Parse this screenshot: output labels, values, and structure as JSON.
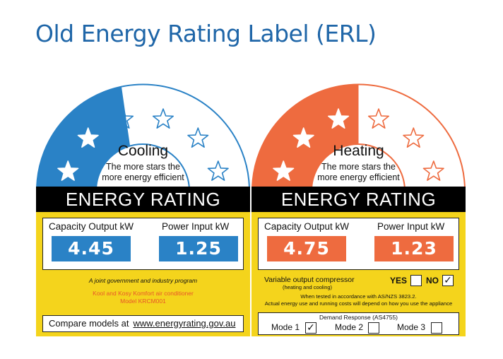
{
  "page": {
    "title": "Old Energy Rating Label (ERL)"
  },
  "cooling": {
    "heading": "Cooling",
    "subtitle_line1": "The more stars the",
    "subtitle_line2": "more energy efficient",
    "rating_banner": "ENERGY RATING",
    "capacity_label": "Capacity Output kW",
    "power_label": "Power Input kW",
    "capacity_value": "4.45",
    "power_value": "1.25",
    "program_text": "A joint government and industry program",
    "product_line": "Kool and Kosy Komfort air conditioner",
    "model_line": "Model KRCM001",
    "compare_text": "Compare models at",
    "compare_url": "www.energyrating.gov.au",
    "stars_filled": 2,
    "stars_total": 6,
    "accent_color": "#2a82c6"
  },
  "heating": {
    "heading": "Heating",
    "subtitle_line1": "The more stars the",
    "subtitle_line2": "more energy efficient",
    "rating_banner": "ENERGY RATING",
    "capacity_label": "Capacity Output kW",
    "power_label": "Power Input kW",
    "capacity_value": "4.75",
    "power_value": "1.23",
    "compressor_text": "Variable output compressor",
    "compressor_sub": "(heating and cooling)",
    "yes_label": "YES",
    "no_label": "NO",
    "compressor_checked": "NO",
    "tested_line": "When tested in accordance with AS/NZS 3823.2.",
    "actual_line": "Actual energy use and running costs will depend on how you use the appliance",
    "demand_title": "Demand Response (AS4755)",
    "modes": [
      {
        "label": "Mode 1",
        "checked": true
      },
      {
        "label": "Mode 2",
        "checked": false
      },
      {
        "label": "Mode 3",
        "checked": false
      }
    ],
    "stars_filled": 3,
    "stars_total": 6,
    "accent_color": "#ee6b3f"
  },
  "colors": {
    "title": "#1f66a8",
    "yellow": "#f4d41c",
    "black": "#000000"
  }
}
